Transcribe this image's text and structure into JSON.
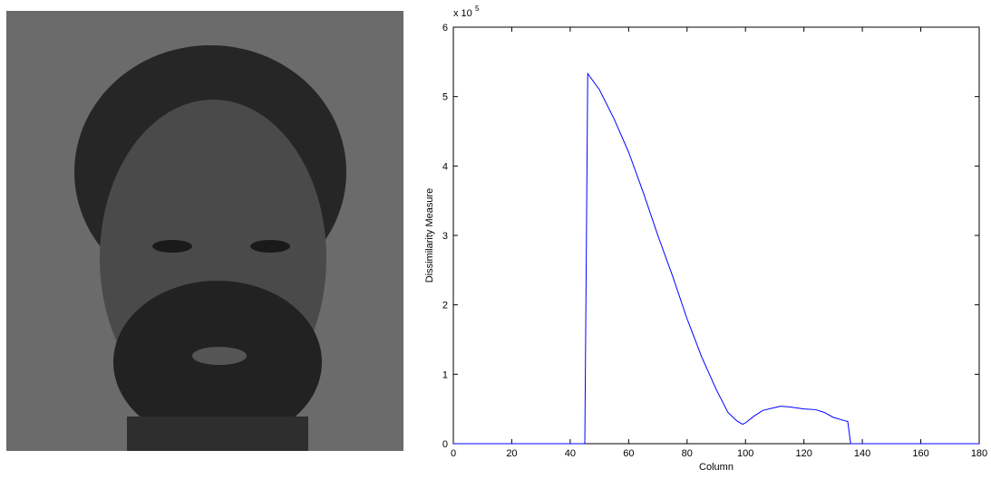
{
  "chart_data": {
    "type": "line",
    "x_label": "Column",
    "y_label": "Dissimilarity Measure",
    "y_multiplier": {
      "base": "x 10",
      "exponent": "5"
    },
    "xlim": [
      0,
      180
    ],
    "xticks": [
      0,
      20,
      40,
      60,
      80,
      100,
      120,
      140,
      160,
      180
    ],
    "ylim": [
      0,
      6
    ],
    "yticks": [
      0,
      1,
      2,
      3,
      4,
      5,
      6
    ],
    "grid": false,
    "series": [
      {
        "color": "#0000ff",
        "x": [
          0,
          45,
          46,
          50,
          55,
          60,
          65,
          70,
          75,
          80,
          85,
          90,
          94,
          97,
          99,
          100,
          103,
          106,
          110,
          112,
          115,
          120,
          124,
          127,
          130,
          134,
          135,
          136,
          180
        ],
        "values": [
          0,
          0,
          5.33,
          5.1,
          4.68,
          4.2,
          3.62,
          3.0,
          2.42,
          1.8,
          1.25,
          0.78,
          0.45,
          0.33,
          0.28,
          0.3,
          0.4,
          0.48,
          0.52,
          0.54,
          0.53,
          0.5,
          0.49,
          0.45,
          0.38,
          0.33,
          0.32,
          0,
          0
        ]
      }
    ]
  }
}
